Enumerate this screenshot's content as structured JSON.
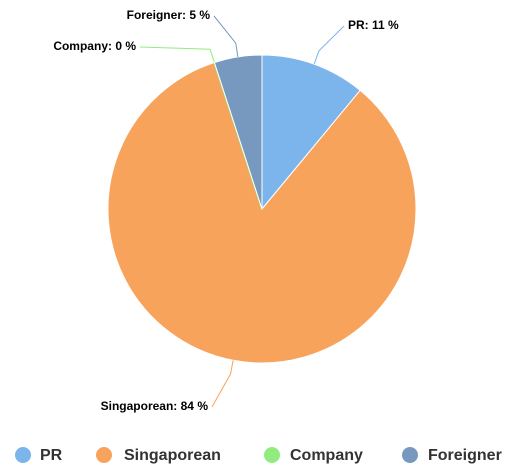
{
  "chart_data": {
    "type": "pie",
    "categories": [
      "PR",
      "Singaporean",
      "Company",
      "Foreigner"
    ],
    "values": [
      11,
      84,
      0,
      5
    ],
    "value_labels": [
      "PR: 11 %",
      "Singaporean: 84 %",
      "Company: 0 %",
      "Foreigner: 5 %"
    ],
    "colors": [
      "#7cb5ec",
      "#f7a35c",
      "#90ed7d",
      "#7798bf"
    ],
    "legend": "bottom"
  }
}
